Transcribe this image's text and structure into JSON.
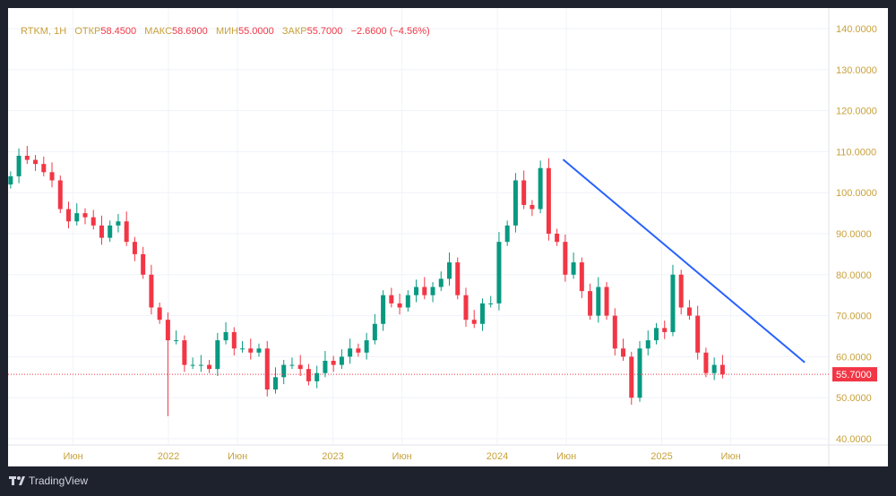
{
  "legend": {
    "symbol": "RTKM, 1Н",
    "open_label": "ОТКР",
    "open": "58.4500",
    "high_label": "МАКС",
    "high": "58.6900",
    "low_label": "МИН",
    "low": "55.0000",
    "close_label": "ЗАКР",
    "close": "55.7000",
    "change": "−2.6600 (−4.56%)"
  },
  "logo": "TradingView",
  "colors": {
    "up": "#089981",
    "down": "#f23645",
    "trendline": "#2962ff",
    "axis_text": "#c8a13a",
    "grid": "#f0f3fa"
  },
  "chart_data": {
    "type": "candlestick",
    "title": "RTKM, 1Н",
    "y_ticks": [
      "140.0000",
      "130.0000",
      "120.0000",
      "110.0000",
      "100.0000",
      "90.0000",
      "80.0000",
      "70.0000",
      "60.0000",
      "50.0000",
      "40.0000"
    ],
    "ylim": [
      40,
      140
    ],
    "x_ticks": [
      {
        "label": "Июн",
        "t": 2021.42
      },
      {
        "label": "2022",
        "t": 2022.0
      },
      {
        "label": "Июн",
        "t": 2022.42
      },
      {
        "label": "2023",
        "t": 2023.0
      },
      {
        "label": "Июн",
        "t": 2023.42
      },
      {
        "label": "2024",
        "t": 2024.0
      },
      {
        "label": "Июн",
        "t": 2024.42
      },
      {
        "label": "2025",
        "t": 2025.0
      },
      {
        "label": "Июн",
        "t": 2025.42
      }
    ],
    "t_start": 2021.04,
    "t_end": 2025.37,
    "first_open": 102,
    "closes": [
      104,
      109,
      108,
      107,
      105,
      103,
      96,
      93,
      95,
      94,
      92,
      89,
      92,
      93,
      88,
      85,
      80,
      72,
      69,
      64,
      64,
      58,
      58,
      58,
      57,
      64,
      66,
      62,
      62,
      61,
      62,
      52,
      55,
      58,
      58,
      57,
      54,
      56,
      59,
      58,
      60,
      62,
      61,
      64,
      68,
      75,
      73,
      72,
      75,
      77,
      75,
      77,
      79,
      83,
      75,
      69,
      68,
      73,
      73,
      88,
      92,
      103,
      97,
      96,
      106,
      90,
      88,
      80,
      83,
      76,
      70,
      77,
      70,
      62,
      60,
      50,
      62,
      64,
      67,
      66,
      80,
      72,
      70,
      61,
      56,
      58,
      55.7
    ],
    "low_overrides": {
      "19": 45.5
    },
    "last_price": "55.7000",
    "trendline": {
      "start": {
        "t": 2024.4,
        "price": 108.1
      },
      "end": {
        "t": 2025.87,
        "price": 58.6
      }
    }
  }
}
